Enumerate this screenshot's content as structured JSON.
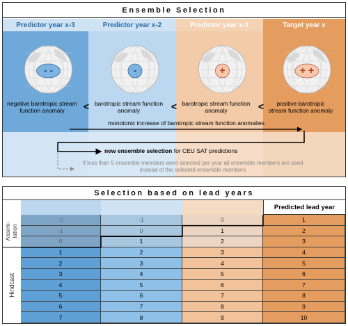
{
  "top": {
    "title": "Ensemble Selection",
    "columns": [
      {
        "header": "Predictor year x-3",
        "sign": "- -",
        "description": "negative barotropic stream function anomaly"
      },
      {
        "header": "Predictor year x-2",
        "sign": "-",
        "description": "barotropic stream function anomaly"
      },
      {
        "header": "Predictor year x-1",
        "sign": "+",
        "description": "barotropic stream function anomaly"
      },
      {
        "header": "Target year x",
        "sign": "+ +",
        "description": "positive barotropic stream function anomaly"
      }
    ],
    "comparators": [
      "<",
      "<",
      "<"
    ],
    "trend": "monotonic increase of barotropic stream function anomalies",
    "selection_bold": "new ensemble selection",
    "selection_rest": "for CEU SAT predictions",
    "note": "If less than 5 ensemble members were selected per year all ensemble members are used instead of the selected ensemble members"
  },
  "bottom": {
    "title": "Selection based on lead years",
    "predicted_header": "Predicted lead year",
    "assimilation_label": [
      "Assimi-",
      "lation"
    ],
    "hindcast_label": "Hindcast",
    "rows": [
      [
        -2,
        -1,
        0,
        1
      ],
      [
        -1,
        0,
        1,
        2
      ],
      [
        0,
        1,
        2,
        3
      ],
      [
        1,
        2,
        3,
        4
      ],
      [
        2,
        3,
        4,
        5
      ],
      [
        3,
        4,
        5,
        6
      ],
      [
        4,
        5,
        6,
        7
      ],
      [
        5,
        6,
        7,
        8
      ],
      [
        6,
        7,
        8,
        9
      ],
      [
        7,
        8,
        9,
        10
      ]
    ]
  }
}
